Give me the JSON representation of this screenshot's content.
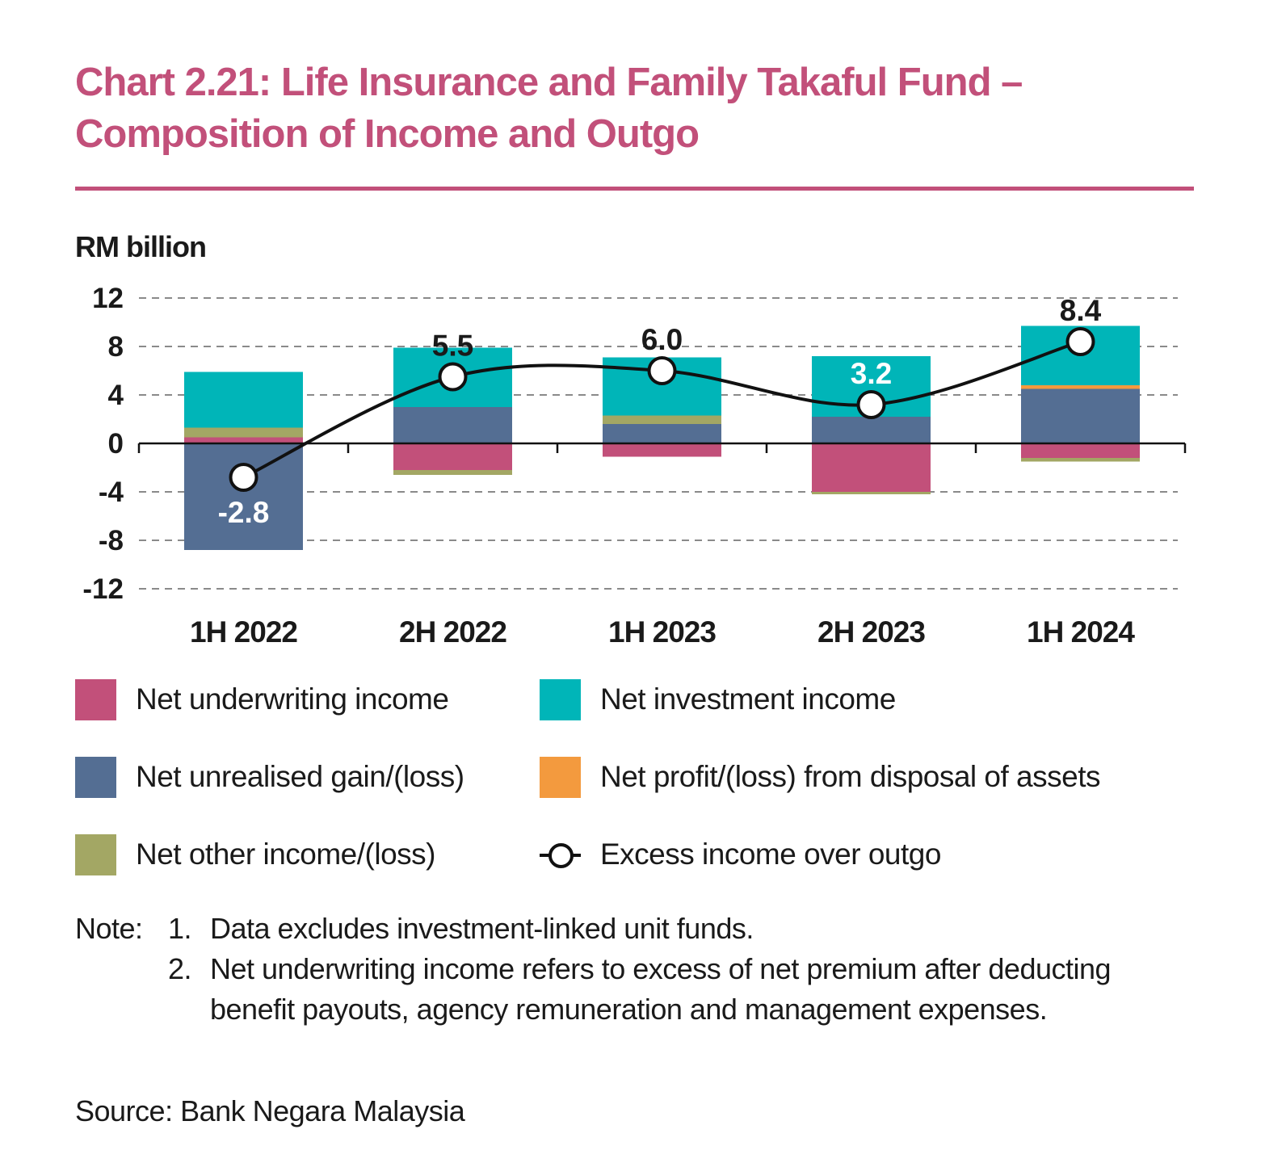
{
  "title_line1": "Chart 2.21: Life Insurance and Family Takaful Fund –",
  "title_line2": "Composition of Income and Outgo",
  "chart_data": {
    "type": "bar",
    "stacked": true,
    "ylabel": "RM billion",
    "ylim": [
      -12,
      12
    ],
    "yticks": [
      12,
      8,
      4,
      0,
      -4,
      -8,
      -12
    ],
    "ytick_labels": [
      "12",
      "8",
      "4",
      "0",
      "-4",
      "-8",
      "-12"
    ],
    "categories": [
      "1H 2022",
      "2H 2022",
      "1H 2023",
      "2H 2023",
      "1H 2024"
    ],
    "grid": true,
    "series": [
      {
        "name": "Net underwriting income",
        "color": "#c2507a",
        "values": [
          0.5,
          -2.2,
          -1.1,
          -4.0,
          -1.2
        ]
      },
      {
        "name": "Net unrealised gain/(loss)",
        "color": "#546e93",
        "values": [
          -8.8,
          3.0,
          1.6,
          2.2,
          4.5
        ]
      },
      {
        "name": "Net profit/(loss) from disposal of assets",
        "color": "#f39a3e",
        "values": [
          0.0,
          0.0,
          0.0,
          0.0,
          0.3
        ]
      },
      {
        "name": "Net other income/(loss)",
        "color": "#a3a764",
        "values": [
          0.8,
          -0.4,
          0.7,
          -0.2,
          -0.3
        ]
      },
      {
        "name": "Net investment income",
        "color": "#00b5b8",
        "values": [
          4.6,
          4.9,
          4.8,
          5.0,
          4.9
        ]
      }
    ],
    "line": {
      "name": "Excess income over outgo",
      "values": [
        -2.8,
        5.5,
        6.0,
        3.2,
        8.4
      ],
      "labels": [
        "-2.8",
        "5.5",
        "6.0",
        "3.2",
        "8.4"
      ]
    }
  },
  "legend": [
    {
      "label": "Net underwriting income",
      "color": "#c2507a"
    },
    {
      "label": "Net investment income",
      "color": "#00b5b8"
    },
    {
      "label": "Net unrealised gain/(loss)",
      "color": "#546e93"
    },
    {
      "label": "Net profit/(loss) from disposal of assets",
      "color": "#f39a3e"
    },
    {
      "label": "Net other income/(loss)",
      "color": "#a3a764"
    },
    {
      "label": "Excess income over outgo",
      "color": "#111111"
    }
  ],
  "notes": {
    "label": "Note:",
    "items": [
      {
        "num": "1.",
        "text": "Data excludes investment-linked unit funds."
      },
      {
        "num": "2.",
        "text": "Net underwriting income refers to excess of net premium after deducting benefit payouts, agency remuneration and management expenses."
      }
    ]
  },
  "source": "Source: Bank Negara Malaysia"
}
